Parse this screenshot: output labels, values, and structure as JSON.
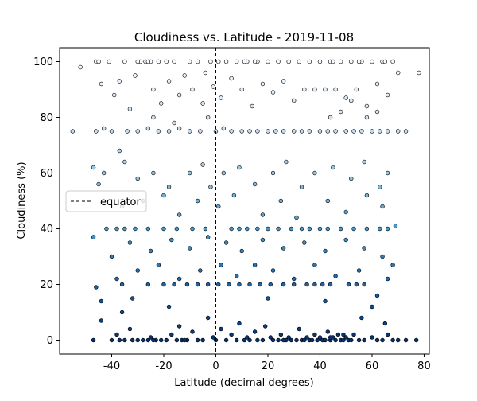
{
  "chart_data": {
    "type": "scatter",
    "title": "Cloudiness vs. Latitude - 2019-11-08",
    "xlabel": "Latitude (decimal degrees)",
    "ylabel": "Cloudiness (%)",
    "xlim": [
      -60,
      82
    ],
    "ylim": [
      -5,
      105
    ],
    "xticks": [
      -40,
      -20,
      0,
      20,
      40,
      60,
      80
    ],
    "yticks": [
      0,
      20,
      40,
      60,
      80,
      100
    ],
    "grid": false,
    "colormap": "Blues",
    "point_edge_color": "#000000",
    "equator_line": {
      "x": 0,
      "style": "dashed",
      "color": "#000000"
    },
    "legend": {
      "entries": [
        "equator"
      ],
      "position": "center-left"
    },
    "series": [
      {
        "points": [
          [
            -55,
            75
          ],
          [
            -52,
            98
          ],
          [
            -46,
            100
          ],
          [
            -45,
            100
          ],
          [
            -44,
            92
          ],
          [
            -41,
            100
          ],
          [
            -39,
            88
          ],
          [
            -37,
            93
          ],
          [
            -35,
            100
          ],
          [
            -33,
            83
          ],
          [
            -31,
            95
          ],
          [
            -29,
            100
          ],
          [
            -27,
            100
          ],
          [
            -25,
            100
          ],
          [
            -24,
            90
          ],
          [
            -22,
            100
          ],
          [
            -21,
            85
          ],
          [
            -19,
            100
          ],
          [
            -18,
            93
          ],
          [
            -16,
            100
          ],
          [
            -14,
            88
          ],
          [
            -12,
            95
          ],
          [
            -10,
            100
          ],
          [
            -9,
            90
          ],
          [
            -7,
            100
          ],
          [
            -5,
            85
          ],
          [
            -4,
            96
          ],
          [
            -2,
            100
          ],
          [
            -1,
            91
          ],
          [
            1,
            100
          ],
          [
            2,
            87
          ],
          [
            4,
            100
          ],
          [
            6,
            94
          ],
          [
            8,
            100
          ],
          [
            10,
            90
          ],
          [
            12,
            100
          ],
          [
            14,
            84
          ],
          [
            16,
            100
          ],
          [
            18,
            92
          ],
          [
            20,
            100
          ],
          [
            22,
            89
          ],
          [
            24,
            100
          ],
          [
            26,
            93
          ],
          [
            28,
            100
          ],
          [
            30,
            86
          ],
          [
            32,
            100
          ],
          [
            34,
            90
          ],
          [
            36,
            100
          ],
          [
            38,
            90
          ],
          [
            40,
            100
          ],
          [
            42,
            90
          ],
          [
            44,
            100
          ],
          [
            46,
            90
          ],
          [
            48,
            100
          ],
          [
            50,
            87
          ],
          [
            52,
            100
          ],
          [
            54,
            90
          ],
          [
            56,
            100
          ],
          [
            58,
            84
          ],
          [
            60,
            100
          ],
          [
            62,
            92
          ],
          [
            64,
            100
          ],
          [
            66,
            88
          ],
          [
            68,
            100
          ],
          [
            70,
            96
          ],
          [
            78,
            96
          ],
          [
            -30,
            100
          ],
          [
            15,
            100
          ],
          [
            45,
            100
          ],
          [
            55,
            100
          ],
          [
            65,
            100
          ],
          [
            -26,
            100
          ],
          [
            11,
            100
          ],
          [
            -46,
            75
          ],
          [
            -43,
            76
          ],
          [
            -40,
            75
          ],
          [
            -37,
            68
          ],
          [
            -34,
            75
          ],
          [
            -30,
            75
          ],
          [
            -26,
            76
          ],
          [
            -22,
            75
          ],
          [
            -18,
            75
          ],
          [
            -14,
            76
          ],
          [
            -10,
            75
          ],
          [
            -6,
            75
          ],
          [
            -3,
            80
          ],
          [
            0,
            75
          ],
          [
            3,
            76
          ],
          [
            6,
            75
          ],
          [
            10,
            75
          ],
          [
            13,
            75
          ],
          [
            16,
            75
          ],
          [
            20,
            75
          ],
          [
            23,
            75
          ],
          [
            26,
            75
          ],
          [
            30,
            75
          ],
          [
            33,
            75
          ],
          [
            36,
            75
          ],
          [
            40,
            75
          ],
          [
            43,
            75
          ],
          [
            46,
            75
          ],
          [
            50,
            75
          ],
          [
            53,
            75
          ],
          [
            56,
            75
          ],
          [
            60,
            75
          ],
          [
            63,
            75
          ],
          [
            66,
            75
          ],
          [
            70,
            75
          ],
          [
            73,
            75
          ],
          [
            44,
            80
          ],
          [
            48,
            82
          ],
          [
            52,
            86
          ],
          [
            58,
            80
          ],
          [
            62,
            82
          ],
          [
            -24,
            80
          ],
          [
            -16,
            78
          ],
          [
            -47,
            62
          ],
          [
            -45,
            56
          ],
          [
            -43,
            60
          ],
          [
            -35,
            64
          ],
          [
            -30,
            58
          ],
          [
            -24,
            60
          ],
          [
            -18,
            55
          ],
          [
            -10,
            60
          ],
          [
            -5,
            63
          ],
          [
            -2,
            55
          ],
          [
            3,
            60
          ],
          [
            9,
            62
          ],
          [
            15,
            56
          ],
          [
            22,
            60
          ],
          [
            27,
            64
          ],
          [
            33,
            55
          ],
          [
            38,
            60
          ],
          [
            45,
            62
          ],
          [
            52,
            58
          ],
          [
            57,
            64
          ],
          [
            63,
            55
          ],
          [
            66,
            60
          ],
          [
            -36,
            48
          ],
          [
            -28,
            50
          ],
          [
            -20,
            52
          ],
          [
            -14,
            45
          ],
          [
            -7,
            50
          ],
          [
            1,
            48
          ],
          [
            7,
            52
          ],
          [
            18,
            45
          ],
          [
            25,
            50
          ],
          [
            31,
            44
          ],
          [
            43,
            50
          ],
          [
            50,
            46
          ],
          [
            58,
            52
          ],
          [
            64,
            48
          ],
          [
            -42,
            40
          ],
          [
            -38,
            40
          ],
          [
            -35,
            40
          ],
          [
            -31,
            40
          ],
          [
            -26,
            40
          ],
          [
            -20,
            40
          ],
          [
            -15,
            40
          ],
          [
            -9,
            40
          ],
          [
            -4,
            40
          ],
          [
            6,
            40
          ],
          [
            9,
            40
          ],
          [
            12,
            40
          ],
          [
            16,
            40
          ],
          [
            20,
            40
          ],
          [
            24,
            40
          ],
          [
            29,
            40
          ],
          [
            33,
            40
          ],
          [
            36,
            40
          ],
          [
            40,
            40
          ],
          [
            43,
            40
          ],
          [
            48,
            40
          ],
          [
            53,
            40
          ],
          [
            58,
            40
          ],
          [
            63,
            40
          ],
          [
            66,
            40
          ],
          [
            69,
            41
          ],
          [
            -47,
            37
          ],
          [
            -40,
            30
          ],
          [
            -33,
            35
          ],
          [
            -25,
            32
          ],
          [
            -17,
            36
          ],
          [
            -10,
            33
          ],
          [
            -3,
            37
          ],
          [
            4,
            35
          ],
          [
            10,
            32
          ],
          [
            18,
            36
          ],
          [
            26,
            33
          ],
          [
            34,
            35
          ],
          [
            42,
            32
          ],
          [
            50,
            36
          ],
          [
            57,
            33
          ],
          [
            64,
            30
          ],
          [
            -36,
            20
          ],
          [
            -26,
            20
          ],
          [
            -20,
            20
          ],
          [
            -16,
            20
          ],
          [
            -11,
            20
          ],
          [
            -7,
            20
          ],
          [
            -3,
            20
          ],
          [
            1,
            20
          ],
          [
            5,
            20
          ],
          [
            9,
            20
          ],
          [
            13,
            20
          ],
          [
            17,
            20
          ],
          [
            21,
            20
          ],
          [
            26,
            20
          ],
          [
            30,
            20
          ],
          [
            35,
            20
          ],
          [
            38,
            20
          ],
          [
            41,
            20
          ],
          [
            44,
            20
          ],
          [
            51,
            20
          ],
          [
            54,
            20
          ],
          [
            57,
            20
          ],
          [
            -46,
            19
          ],
          [
            -44,
            14
          ],
          [
            -38,
            22
          ],
          [
            -30,
            25
          ],
          [
            -22,
            27
          ],
          [
            -14,
            22
          ],
          [
            -6,
            25
          ],
          [
            2,
            27
          ],
          [
            8,
            23
          ],
          [
            15,
            27
          ],
          [
            22,
            25
          ],
          [
            30,
            22
          ],
          [
            38,
            27
          ],
          [
            46,
            23
          ],
          [
            55,
            25
          ],
          [
            62,
            16
          ],
          [
            66,
            22
          ],
          [
            68,
            27
          ],
          [
            -32,
            15
          ],
          [
            -18,
            12
          ],
          [
            20,
            15
          ],
          [
            42,
            14
          ],
          [
            60,
            12
          ],
          [
            -47,
            0
          ],
          [
            -44,
            7
          ],
          [
            -40,
            0
          ],
          [
            -38,
            2
          ],
          [
            -36,
            10
          ],
          [
            -35,
            0
          ],
          [
            -33,
            4
          ],
          [
            -32,
            0
          ],
          [
            -30,
            0
          ],
          [
            -28,
            0
          ],
          [
            -26,
            0
          ],
          [
            -25,
            1
          ],
          [
            -23,
            0
          ],
          [
            -21,
            0
          ],
          [
            -19,
            0
          ],
          [
            -17,
            2
          ],
          [
            -15,
            0
          ],
          [
            -14,
            5
          ],
          [
            -13,
            0
          ],
          [
            -11,
            0
          ],
          [
            -9,
            3
          ],
          [
            -7,
            0
          ],
          [
            -5,
            0
          ],
          [
            -3,
            8
          ],
          [
            -1,
            1
          ],
          [
            0,
            0
          ],
          [
            2,
            4
          ],
          [
            4,
            0
          ],
          [
            6,
            2
          ],
          [
            8,
            0
          ],
          [
            9,
            6
          ],
          [
            11,
            0
          ],
          [
            12,
            1
          ],
          [
            13,
            0
          ],
          [
            15,
            3
          ],
          [
            16,
            0
          ],
          [
            18,
            0
          ],
          [
            19,
            5
          ],
          [
            21,
            1
          ],
          [
            22,
            0
          ],
          [
            24,
            0
          ],
          [
            25,
            2
          ],
          [
            27,
            0
          ],
          [
            28,
            1
          ],
          [
            29,
            0
          ],
          [
            31,
            0
          ],
          [
            32,
            4
          ],
          [
            33,
            0
          ],
          [
            35,
            1
          ],
          [
            36,
            0
          ],
          [
            37,
            0
          ],
          [
            38,
            2
          ],
          [
            39,
            0
          ],
          [
            40,
            1
          ],
          [
            41,
            0
          ],
          [
            42,
            0
          ],
          [
            43,
            3
          ],
          [
            44,
            0
          ],
          [
            45,
            1
          ],
          [
            46,
            0
          ],
          [
            47,
            2
          ],
          [
            48,
            0
          ],
          [
            49,
            0
          ],
          [
            50,
            1
          ],
          [
            51,
            0
          ],
          [
            52,
            0
          ],
          [
            53,
            2
          ],
          [
            55,
            0
          ],
          [
            57,
            0
          ],
          [
            60,
            1
          ],
          [
            62,
            0
          ],
          [
            64,
            0
          ],
          [
            66,
            2
          ],
          [
            68,
            0
          ],
          [
            70,
            0
          ],
          [
            73,
            0
          ],
          [
            77,
            0
          ],
          [
            -37,
            0
          ],
          [
            -24,
            0
          ],
          [
            -12,
            0
          ],
          [
            26,
            0
          ],
          [
            34,
            0
          ],
          [
            44,
            1
          ],
          [
            49,
            2
          ],
          [
            56,
            8
          ],
          [
            65,
            6
          ]
        ]
      }
    ]
  }
}
